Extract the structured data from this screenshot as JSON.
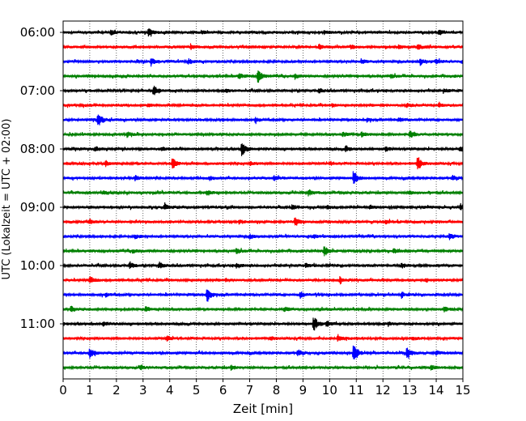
{
  "chart_data": {
    "type": "line",
    "title": "",
    "xlabel": "Zeit  [min]",
    "ylabel": "UTC (Lokalzeit = UTC + 02:00)",
    "xlim": [
      0,
      15
    ],
    "x_ticks": [
      "0",
      "1",
      "2",
      "3",
      "4",
      "5",
      "6",
      "7",
      "8",
      "9",
      "10",
      "11",
      "12",
      "13",
      "14",
      "15"
    ],
    "y_tick_labels": [
      "06:00",
      "07:00",
      "08:00",
      "09:00",
      "10:00",
      "11:00"
    ],
    "grid": "vertical dotted at each minute",
    "trace_colors": [
      "#000000",
      "#ff0000",
      "#0000ff",
      "#008000"
    ],
    "series": [
      {
        "start": "06:00",
        "events": [
          [
            3.2,
            0.45
          ],
          [
            1.8,
            0.25
          ],
          [
            14.1,
            0.35
          ],
          [
            5.2,
            0.2
          ],
          [
            9.8,
            0.2
          ]
        ]
      },
      {
        "start": "06:15",
        "events": [
          [
            9.6,
            0.3
          ],
          [
            4.8,
            0.25
          ],
          [
            13.3,
            0.35
          ],
          [
            10.8,
            0.2
          ],
          [
            12.6,
            0.2
          ]
        ]
      },
      {
        "start": "06:30",
        "events": [
          [
            3.3,
            0.35
          ],
          [
            4.7,
            0.3
          ],
          [
            13.4,
            0.4
          ],
          [
            14.0,
            0.25
          ],
          [
            11.2,
            0.2
          ]
        ]
      },
      {
        "start": "06:45",
        "events": [
          [
            7.3,
            0.9
          ],
          [
            6.6,
            0.35
          ],
          [
            8.7,
            0.25
          ],
          [
            12.3,
            0.2
          ]
        ]
      },
      {
        "start": "07:00",
        "events": [
          [
            3.4,
            0.6
          ],
          [
            9.6,
            0.25
          ],
          [
            14.3,
            0.2
          ],
          [
            6.1,
            0.2
          ]
        ]
      },
      {
        "start": "07:15",
        "events": [
          [
            3.2,
            0.2
          ],
          [
            10.1,
            0.2
          ],
          [
            12.9,
            0.25
          ],
          [
            14.1,
            0.2
          ]
        ]
      },
      {
        "start": "07:30",
        "events": [
          [
            1.3,
            1.0
          ],
          [
            7.2,
            0.25
          ],
          [
            11.4,
            0.2
          ],
          [
            12.6,
            0.2
          ]
        ]
      },
      {
        "start": "07:45",
        "events": [
          [
            13.0,
            0.45
          ],
          [
            2.4,
            0.3
          ],
          [
            10.5,
            0.25
          ],
          [
            11.2,
            0.25
          ]
        ]
      },
      {
        "start": "08:00",
        "events": [
          [
            6.7,
            1.0
          ],
          [
            10.6,
            0.35
          ],
          [
            1.2,
            0.3
          ],
          [
            14.9,
            0.3
          ],
          [
            3.7,
            0.2
          ],
          [
            12.1,
            0.25
          ]
        ]
      },
      {
        "start": "08:15",
        "events": [
          [
            4.1,
            0.75
          ],
          [
            13.3,
            1.0
          ],
          [
            1.6,
            0.3
          ],
          [
            7.0,
            0.2
          ],
          [
            10.0,
            0.2
          ]
        ]
      },
      {
        "start": "08:30",
        "events": [
          [
            10.9,
            0.8
          ],
          [
            2.7,
            0.3
          ],
          [
            7.9,
            0.3
          ],
          [
            5.5,
            0.2
          ],
          [
            14.6,
            0.2
          ]
        ]
      },
      {
        "start": "08:45",
        "events": [
          [
            9.2,
            0.35
          ],
          [
            5.4,
            0.25
          ],
          [
            1.5,
            0.2
          ],
          [
            13.0,
            0.2
          ]
        ]
      },
      {
        "start": "09:00",
        "events": [
          [
            3.8,
            0.35
          ],
          [
            14.9,
            0.4
          ],
          [
            8.6,
            0.3
          ],
          [
            11.5,
            0.25
          ],
          [
            9.9,
            0.25
          ]
        ]
      },
      {
        "start": "09:15",
        "events": [
          [
            8.7,
            0.55
          ],
          [
            1.0,
            0.3
          ],
          [
            6.6,
            0.2
          ],
          [
            12.1,
            0.25
          ]
        ]
      },
      {
        "start": "09:30",
        "events": [
          [
            14.5,
            0.35
          ],
          [
            7.0,
            0.25
          ],
          [
            9.4,
            0.2
          ],
          [
            2.7,
            0.2
          ]
        ]
      },
      {
        "start": "09:45",
        "events": [
          [
            9.8,
            0.6
          ],
          [
            6.5,
            0.3
          ],
          [
            12.4,
            0.25
          ],
          [
            2.6,
            0.2
          ]
        ]
      },
      {
        "start": "10:00",
        "events": [
          [
            2.5,
            0.4
          ],
          [
            3.6,
            0.35
          ],
          [
            6.5,
            0.25
          ],
          [
            12.7,
            0.3
          ],
          [
            9.1,
            0.2
          ]
        ]
      },
      {
        "start": "10:15",
        "events": [
          [
            1.0,
            0.5
          ],
          [
            10.4,
            0.35
          ],
          [
            6.1,
            0.2
          ],
          [
            13.6,
            0.25
          ]
        ]
      },
      {
        "start": "10:30",
        "events": [
          [
            5.4,
            0.95
          ],
          [
            8.9,
            0.4
          ],
          [
            12.7,
            0.35
          ],
          [
            1.6,
            0.2
          ]
        ]
      },
      {
        "start": "10:45",
        "events": [
          [
            3.1,
            0.35
          ],
          [
            0.3,
            0.35
          ],
          [
            14.3,
            0.35
          ],
          [
            8.3,
            0.25
          ]
        ]
      },
      {
        "start": "11:00",
        "events": [
          [
            9.4,
            0.95
          ],
          [
            9.9,
            0.3
          ],
          [
            1.5,
            0.25
          ],
          [
            12.2,
            0.2
          ]
        ]
      },
      {
        "start": "11:15",
        "events": [
          [
            10.3,
            0.45
          ],
          [
            3.9,
            0.25
          ],
          [
            7.8,
            0.2
          ],
          [
            13.1,
            0.2
          ]
        ]
      },
      {
        "start": "11:30",
        "events": [
          [
            10.9,
            1.25
          ],
          [
            12.9,
            0.7
          ],
          [
            1.0,
            0.6
          ],
          [
            8.8,
            0.3
          ],
          [
            14.0,
            0.25
          ]
        ]
      },
      {
        "start": "11:45",
        "events": [
          [
            6.3,
            0.25
          ],
          [
            13.8,
            0.25
          ],
          [
            2.9,
            0.2
          ]
        ]
      }
    ]
  }
}
